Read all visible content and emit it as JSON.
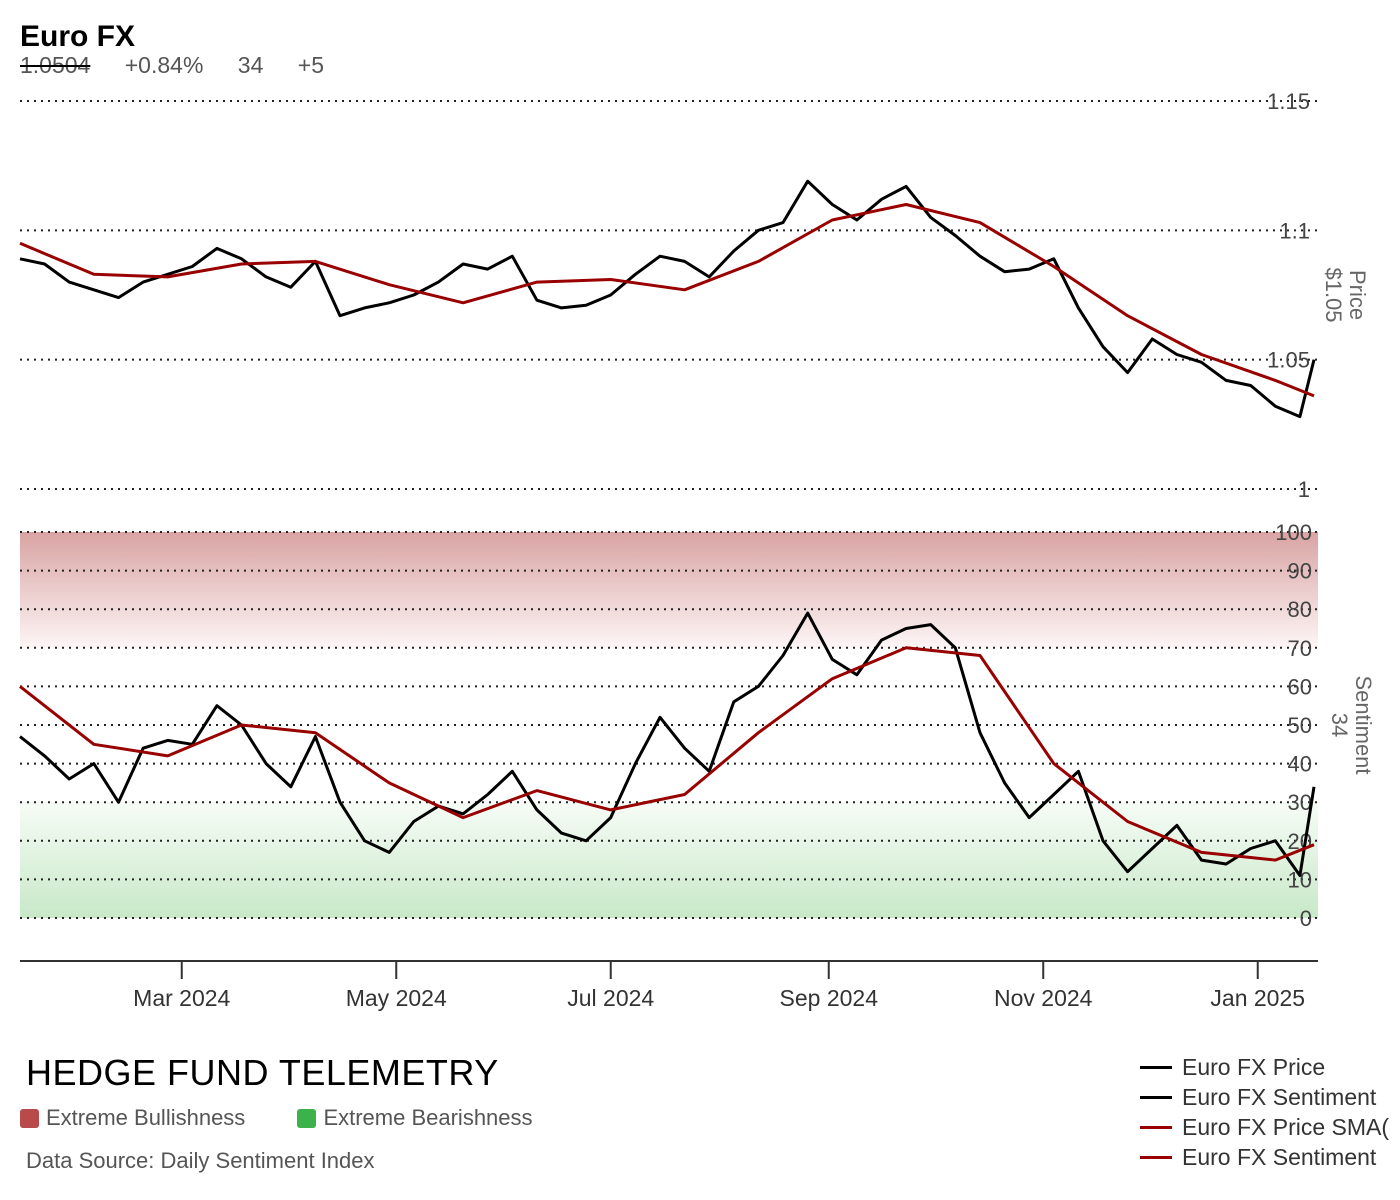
{
  "header": {
    "title": "Euro FX",
    "last_price": "1.0504",
    "change_pct": "+0.84%",
    "sentiment": "34",
    "sentiment_change": "+5"
  },
  "footer": {
    "brand": "HEDGE FUND TELEMETRY",
    "zones": [
      {
        "label": "Extreme Bullishness",
        "color": "#b94a4a"
      },
      {
        "label": "Extreme Bearishness",
        "color": "#3cb34a"
      }
    ],
    "source": "Data Source: Daily Sentiment Index"
  },
  "legend": [
    {
      "label": "Euro FX Price",
      "color": "#000000"
    },
    {
      "label": "Euro FX Sentiment",
      "color": "#000000"
    },
    {
      "label": "Euro FX Price SMA(",
      "color": "#990000"
    },
    {
      "label": "Euro FX Sentiment",
      "color": "#990000"
    }
  ],
  "chart_data": [
    {
      "type": "line",
      "x_start": "2024-01-15",
      "x_end": "2025-01-17",
      "x_ticks": [
        "2024-03-01",
        "2024-05-01",
        "2024-07-01",
        "2024-09-01",
        "2024-11-01",
        "2025-01-01"
      ],
      "x_tick_labels": [
        "Mar 2024",
        "May 2024",
        "Jul 2024",
        "Sep 2024",
        "Nov 2024",
        "Jan 2025"
      ],
      "ylim": [
        1.0,
        1.15
      ],
      "y_ticks": [
        1.0,
        1.05,
        1.1,
        1.15
      ],
      "y_tick_labels": [
        "1",
        "1.05",
        "1.1",
        "1.15"
      ],
      "ylabel": "Price",
      "ylabel_value": "$1.05",
      "grid": true,
      "series": [
        {
          "name": "Euro FX Price",
          "color": "#000000",
          "x": [
            "2024-01-15",
            "2024-01-22",
            "2024-01-29",
            "2024-02-05",
            "2024-02-12",
            "2024-02-19",
            "2024-02-26",
            "2024-03-04",
            "2024-03-11",
            "2024-03-18",
            "2024-03-25",
            "2024-04-01",
            "2024-04-08",
            "2024-04-15",
            "2024-04-22",
            "2024-04-29",
            "2024-05-06",
            "2024-05-13",
            "2024-05-20",
            "2024-05-27",
            "2024-06-03",
            "2024-06-10",
            "2024-06-17",
            "2024-06-24",
            "2024-07-01",
            "2024-07-08",
            "2024-07-15",
            "2024-07-22",
            "2024-07-29",
            "2024-08-05",
            "2024-08-12",
            "2024-08-19",
            "2024-08-26",
            "2024-09-02",
            "2024-09-09",
            "2024-09-16",
            "2024-09-23",
            "2024-09-30",
            "2024-10-07",
            "2024-10-14",
            "2024-10-21",
            "2024-10-28",
            "2024-11-04",
            "2024-11-11",
            "2024-11-18",
            "2024-11-25",
            "2024-12-02",
            "2024-12-09",
            "2024-12-16",
            "2024-12-23",
            "2024-12-30",
            "2025-01-06",
            "2025-01-13",
            "2025-01-17"
          ],
          "y": [
            1.089,
            1.087,
            1.08,
            1.077,
            1.074,
            1.08,
            1.083,
            1.086,
            1.093,
            1.089,
            1.082,
            1.078,
            1.088,
            1.067,
            1.07,
            1.072,
            1.075,
            1.08,
            1.087,
            1.085,
            1.09,
            1.073,
            1.07,
            1.071,
            1.075,
            1.083,
            1.09,
            1.088,
            1.082,
            1.092,
            1.1,
            1.103,
            1.119,
            1.11,
            1.104,
            1.112,
            1.117,
            1.105,
            1.098,
            1.09,
            1.084,
            1.085,
            1.089,
            1.07,
            1.055,
            1.045,
            1.058,
            1.052,
            1.049,
            1.042,
            1.04,
            1.032,
            1.028,
            1.05
          ]
        },
        {
          "name": "Euro FX Price SMA(",
          "color": "#990000",
          "x": [
            "2024-01-15",
            "2024-02-05",
            "2024-02-26",
            "2024-03-18",
            "2024-04-08",
            "2024-04-29",
            "2024-05-20",
            "2024-06-10",
            "2024-07-01",
            "2024-07-22",
            "2024-08-12",
            "2024-09-02",
            "2024-09-23",
            "2024-10-14",
            "2024-11-04",
            "2024-11-25",
            "2024-12-16",
            "2025-01-06",
            "2025-01-17"
          ],
          "y": [
            1.095,
            1.083,
            1.082,
            1.087,
            1.088,
            1.079,
            1.072,
            1.08,
            1.081,
            1.077,
            1.088,
            1.104,
            1.11,
            1.103,
            1.086,
            1.067,
            1.052,
            1.042,
            1.036
          ]
        }
      ]
    },
    {
      "type": "line",
      "x_start": "2024-01-15",
      "x_end": "2025-01-17",
      "ylim": [
        0,
        100
      ],
      "y_ticks": [
        0,
        10,
        20,
        30,
        40,
        50,
        60,
        70,
        80,
        90,
        100
      ],
      "ylabel": "Sentiment",
      "ylabel_value": "34",
      "grid": true,
      "zones": [
        {
          "name": "Extreme Bullishness",
          "from": 70,
          "to": 100,
          "color": "#b94a4a"
        },
        {
          "name": "Extreme Bearishness",
          "from": 0,
          "to": 30,
          "color": "#3cb34a"
        }
      ],
      "series": [
        {
          "name": "Euro FX Sentiment",
          "color": "#000000",
          "x": [
            "2024-01-15",
            "2024-01-22",
            "2024-01-29",
            "2024-02-05",
            "2024-02-12",
            "2024-02-19",
            "2024-02-26",
            "2024-03-04",
            "2024-03-11",
            "2024-03-18",
            "2024-03-25",
            "2024-04-01",
            "2024-04-08",
            "2024-04-15",
            "2024-04-22",
            "2024-04-29",
            "2024-05-06",
            "2024-05-13",
            "2024-05-20",
            "2024-05-27",
            "2024-06-03",
            "2024-06-10",
            "2024-06-17",
            "2024-06-24",
            "2024-07-01",
            "2024-07-08",
            "2024-07-15",
            "2024-07-22",
            "2024-07-29",
            "2024-08-05",
            "2024-08-12",
            "2024-08-19",
            "2024-08-26",
            "2024-09-02",
            "2024-09-09",
            "2024-09-16",
            "2024-09-23",
            "2024-09-30",
            "2024-10-07",
            "2024-10-14",
            "2024-10-21",
            "2024-10-28",
            "2024-11-04",
            "2024-11-11",
            "2024-11-18",
            "2024-11-25",
            "2024-12-02",
            "2024-12-09",
            "2024-12-16",
            "2024-12-23",
            "2024-12-30",
            "2025-01-06",
            "2025-01-13",
            "2025-01-17"
          ],
          "y": [
            47,
            42,
            36,
            40,
            30,
            44,
            46,
            45,
            55,
            50,
            40,
            34,
            47,
            30,
            20,
            17,
            25,
            29,
            27,
            32,
            38,
            28,
            22,
            20,
            26,
            40,
            52,
            44,
            38,
            56,
            60,
            68,
            79,
            67,
            63,
            72,
            75,
            76,
            70,
            48,
            35,
            26,
            32,
            38,
            20,
            12,
            18,
            24,
            15,
            14,
            18,
            20,
            11,
            34
          ]
        },
        {
          "name": "Euro FX Sentiment",
          "color": "#990000",
          "x": [
            "2024-01-15",
            "2024-02-05",
            "2024-02-26",
            "2024-03-18",
            "2024-04-08",
            "2024-04-29",
            "2024-05-20",
            "2024-06-10",
            "2024-07-01",
            "2024-07-22",
            "2024-08-12",
            "2024-09-02",
            "2024-09-23",
            "2024-10-14",
            "2024-11-04",
            "2024-11-25",
            "2024-12-16",
            "2025-01-06",
            "2025-01-17"
          ],
          "y": [
            60,
            45,
            42,
            50,
            48,
            35,
            26,
            33,
            28,
            32,
            48,
            62,
            70,
            68,
            40,
            25,
            17,
            15,
            19
          ]
        }
      ]
    }
  ]
}
